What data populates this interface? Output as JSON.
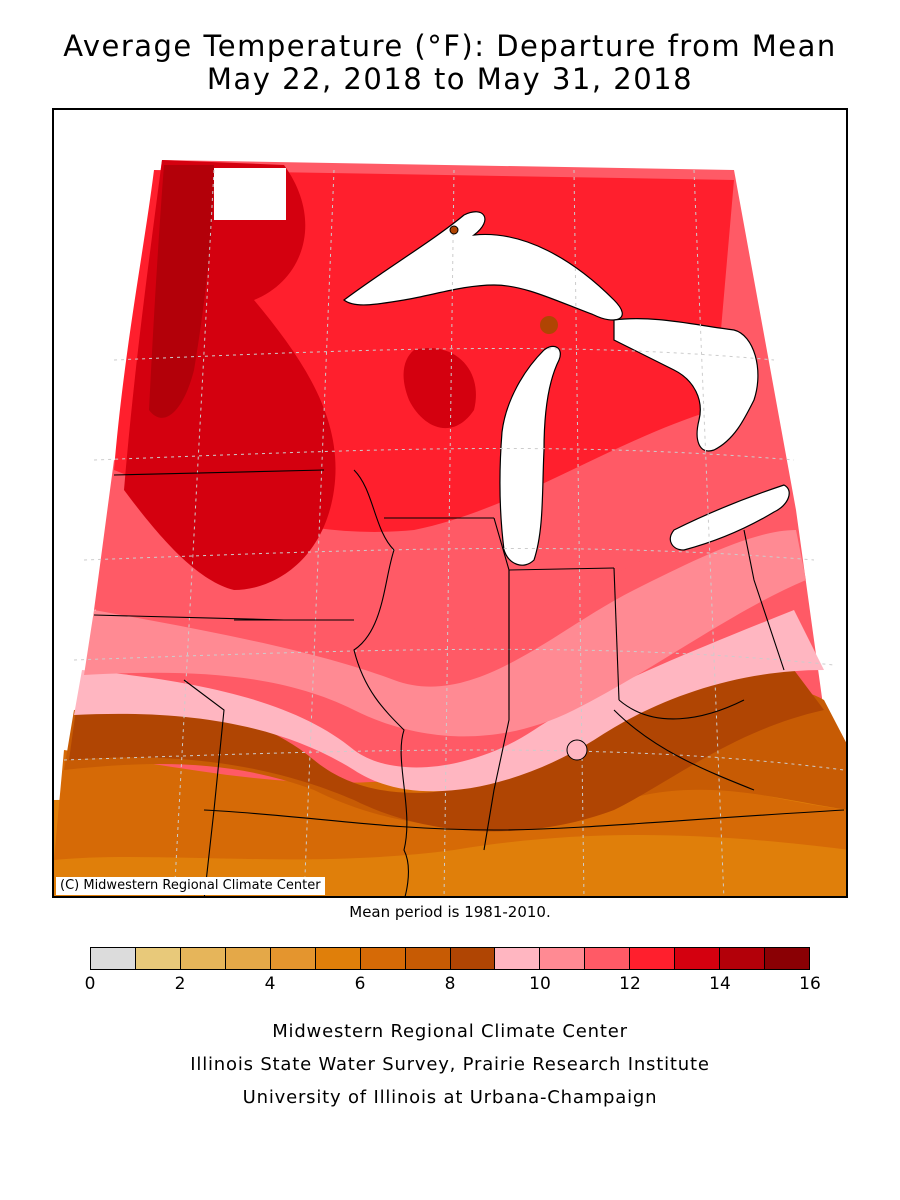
{
  "title": {
    "line1": "Average Temperature (°F): Departure from Mean",
    "line2": "May 22, 2018 to May 31, 2018"
  },
  "map": {
    "copyright": "(C) Midwestern Regional Climate Center",
    "mean_period": "Mean period is 1981-2010."
  },
  "legend": {
    "colors": [
      "#dcdcdc",
      "#e8c97a",
      "#e6b55a",
      "#e4a848",
      "#e4952e",
      "#e07f0a",
      "#d66a06",
      "#c75b04",
      "#b04503",
      "#ffb6c1",
      "#ff8a93",
      "#ff5a66",
      "#ff1f2d",
      "#d4000f",
      "#b30009",
      "#8a0004"
    ],
    "ticks": [
      "0",
      "2",
      "4",
      "6",
      "8",
      "10",
      "12",
      "14",
      "16"
    ]
  },
  "footer": {
    "line1": "Midwestern Regional Climate Center",
    "line2": "Illinois State Water Survey, Prairie Research Institute",
    "line3": "University of Illinois at Urbana-Champaign"
  }
}
